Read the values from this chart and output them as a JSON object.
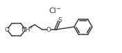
{
  "bg_color": "#ffffff",
  "line_color": "#3a3a3a",
  "text_color": "#3a3a3a",
  "figsize": [
    1.76,
    0.77
  ],
  "dpi": 100,
  "Cl_label": "Cl",
  "Cl_superscript": "−",
  "NH_label": "NH",
  "NH_superscript": "+",
  "O_label": "O",
  "S_label": "S",
  "lw": 1.1
}
